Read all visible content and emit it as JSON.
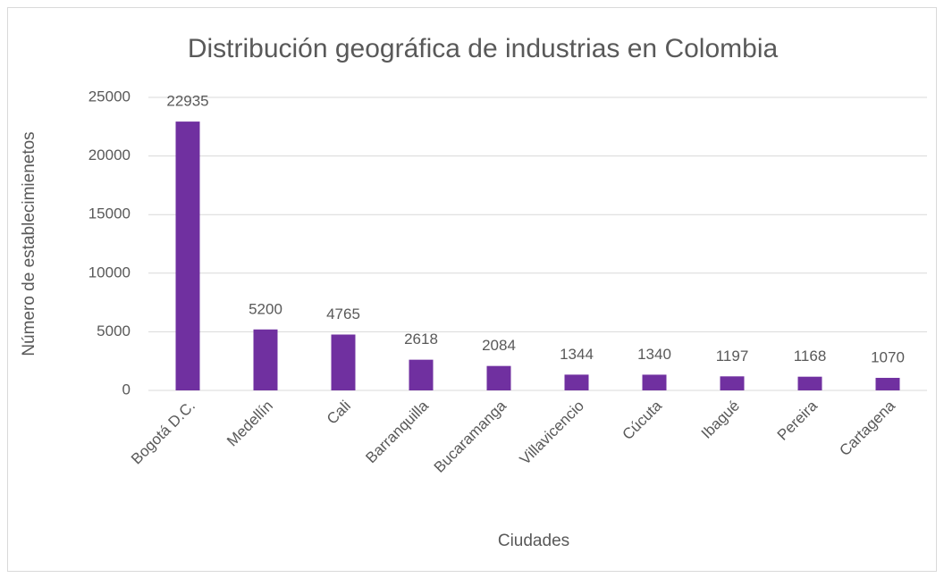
{
  "chart_data": {
    "type": "bar",
    "title": "Distribución geográfica de industrias en Colombia",
    "x_label": "Ciudades",
    "y_label": "Número de establecimienetos",
    "categories": [
      "Bogotá D.C.",
      "Medellín",
      "Cali",
      "Barranquilla",
      "Bucaramanga",
      "Villavicencio",
      "Cúcuta",
      "Ibagué",
      "Pereira",
      "Cartagena"
    ],
    "values": [
      22935,
      5200,
      4765,
      2618,
      2084,
      1344,
      1340,
      1197,
      1168,
      1070
    ],
    "color": "#7030a0",
    "ylim": [
      0,
      25000
    ],
    "yticks": [
      0,
      5000,
      10000,
      15000,
      20000,
      25000
    ],
    "grid": true
  }
}
